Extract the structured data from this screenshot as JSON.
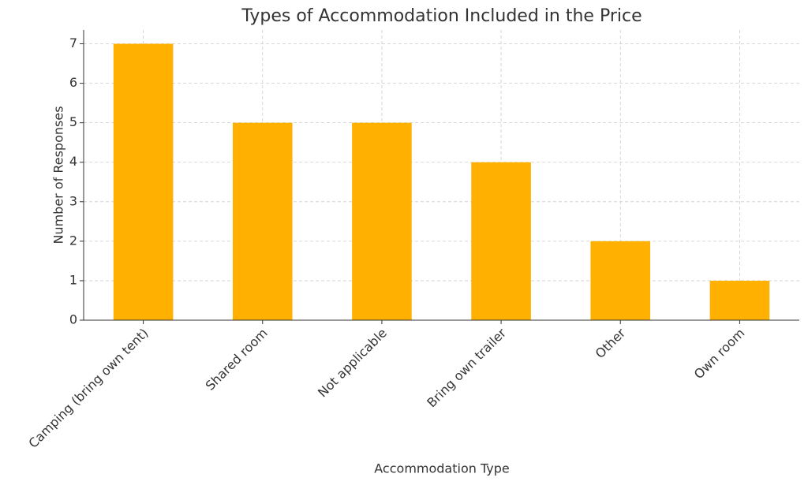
{
  "chart_data": {
    "type": "bar",
    "title": "Types of Accommodation Included in the Price",
    "x_label": "Accommodation Type",
    "y_label": "Number of Responses",
    "categories": [
      "Camping (bring own tent)",
      "Shared room",
      "Not applicable",
      "Bring own trailer",
      "Other",
      "Own room"
    ],
    "values": [
      7,
      5,
      5,
      4,
      2,
      1
    ],
    "color": "#ffb000",
    "ylim": [
      0,
      7.35
    ],
    "yticks": [
      0,
      1,
      2,
      3,
      4,
      5,
      6,
      7
    ],
    "grid": true
  }
}
